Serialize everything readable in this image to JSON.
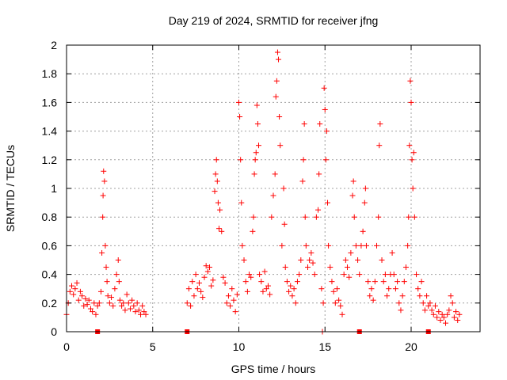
{
  "chart_data": {
    "type": "scatter",
    "title": "Day 219 of 2024, SRMTID for receiver jfng",
    "xlabel": "GPS time / hours",
    "ylabel": "SRMTID / TECUs",
    "xlim": [
      0,
      24
    ],
    "ylim": [
      0,
      2
    ],
    "x_ticks": [
      0,
      5,
      10,
      15,
      20
    ],
    "x_tick_labels": [
      "0",
      "5",
      "10",
      "15",
      "20"
    ],
    "y_ticks": [
      0,
      0.2,
      0.4,
      0.6,
      0.8,
      1,
      1.2,
      1.4,
      1.6,
      1.8,
      2
    ],
    "y_tick_labels": [
      "0",
      "0.2",
      "0.4",
      "0.6",
      "0.8",
      "1",
      "1.2",
      "1.4",
      "1.6",
      "1.8",
      "2"
    ],
    "grid": true,
    "marker": "+",
    "color": "#ff0000",
    "zero_markers_x": [
      1.8,
      7.0,
      17.0,
      21.0
    ],
    "series": [
      {
        "name": "SRMTID",
        "points": [
          [
            0.0,
            0.12
          ],
          [
            0.1,
            0.2
          ],
          [
            0.2,
            0.28
          ],
          [
            0.3,
            0.32
          ],
          [
            0.4,
            0.26
          ],
          [
            0.5,
            0.3
          ],
          [
            0.6,
            0.34
          ],
          [
            0.7,
            0.22
          ],
          [
            0.8,
            0.28
          ],
          [
            0.9,
            0.25
          ],
          [
            1.0,
            0.18
          ],
          [
            1.1,
            0.23
          ],
          [
            1.2,
            0.19
          ],
          [
            1.3,
            0.22
          ],
          [
            1.4,
            0.16
          ],
          [
            1.5,
            0.14
          ],
          [
            1.6,
            0.2
          ],
          [
            1.7,
            0.12
          ],
          [
            1.8,
            0.18
          ],
          [
            1.9,
            0.2
          ],
          [
            2.0,
            0.28
          ],
          [
            2.05,
            0.55
          ],
          [
            2.1,
            0.8
          ],
          [
            2.12,
            0.95
          ],
          [
            2.15,
            1.12
          ],
          [
            2.2,
            1.05
          ],
          [
            2.25,
            0.6
          ],
          [
            2.3,
            0.45
          ],
          [
            2.35,
            0.35
          ],
          [
            2.4,
            0.25
          ],
          [
            2.5,
            0.2
          ],
          [
            2.6,
            0.24
          ],
          [
            2.7,
            0.18
          ],
          [
            2.8,
            0.3
          ],
          [
            2.9,
            0.4
          ],
          [
            3.0,
            0.5
          ],
          [
            3.05,
            0.35
          ],
          [
            3.1,
            0.22
          ],
          [
            3.2,
            0.18
          ],
          [
            3.3,
            0.2
          ],
          [
            3.4,
            0.15
          ],
          [
            3.5,
            0.26
          ],
          [
            3.6,
            0.2
          ],
          [
            3.7,
            0.16
          ],
          [
            3.8,
            0.22
          ],
          [
            3.9,
            0.18
          ],
          [
            4.0,
            0.14
          ],
          [
            4.1,
            0.2
          ],
          [
            4.2,
            0.15
          ],
          [
            4.3,
            0.12
          ],
          [
            4.4,
            0.18
          ],
          [
            4.5,
            0.14
          ],
          [
            4.6,
            0.12
          ],
          [
            7.0,
            0.2
          ],
          [
            7.1,
            0.3
          ],
          [
            7.2,
            0.18
          ],
          [
            7.3,
            0.35
          ],
          [
            7.4,
            0.25
          ],
          [
            7.5,
            0.4
          ],
          [
            7.6,
            0.3
          ],
          [
            7.7,
            0.34
          ],
          [
            7.8,
            0.28
          ],
          [
            7.9,
            0.24
          ],
          [
            8.0,
            0.38
          ],
          [
            8.1,
            0.46
          ],
          [
            8.2,
            0.42
          ],
          [
            8.3,
            0.45
          ],
          [
            8.4,
            0.32
          ],
          [
            8.5,
            0.36
          ],
          [
            8.6,
            0.98
          ],
          [
            8.65,
            1.1
          ],
          [
            8.7,
            1.2
          ],
          [
            8.75,
            1.05
          ],
          [
            8.8,
            0.9
          ],
          [
            8.85,
            0.72
          ],
          [
            8.9,
            0.85
          ],
          [
            9.0,
            0.7
          ],
          [
            9.1,
            0.38
          ],
          [
            9.2,
            0.34
          ],
          [
            9.3,
            0.2
          ],
          [
            9.4,
            0.25
          ],
          [
            9.5,
            0.18
          ],
          [
            9.6,
            0.3
          ],
          [
            9.7,
            0.22
          ],
          [
            9.8,
            0.14
          ],
          [
            9.9,
            0.26
          ],
          [
            10.0,
            1.6
          ],
          [
            10.05,
            1.5
          ],
          [
            10.1,
            1.2
          ],
          [
            10.15,
            0.9
          ],
          [
            10.2,
            0.6
          ],
          [
            10.3,
            0.5
          ],
          [
            10.4,
            0.35
          ],
          [
            10.5,
            0.28
          ],
          [
            10.6,
            0.4
          ],
          [
            10.7,
            0.38
          ],
          [
            10.8,
            0.7
          ],
          [
            10.85,
            0.8
          ],
          [
            10.9,
            1.1
          ],
          [
            10.95,
            1.2
          ],
          [
            11.0,
            1.25
          ],
          [
            11.05,
            1.58
          ],
          [
            11.1,
            1.45
          ],
          [
            11.15,
            1.3
          ],
          [
            11.2,
            0.4
          ],
          [
            11.3,
            0.35
          ],
          [
            11.4,
            0.28
          ],
          [
            11.5,
            0.42
          ],
          [
            11.6,
            0.3
          ],
          [
            11.7,
            0.32
          ],
          [
            11.8,
            0.26
          ],
          [
            11.9,
            0.8
          ],
          [
            12.0,
            0.95
          ],
          [
            12.1,
            1.1
          ],
          [
            12.15,
            1.64
          ],
          [
            12.2,
            1.75
          ],
          [
            12.25,
            1.95
          ],
          [
            12.3,
            1.9
          ],
          [
            12.35,
            1.5
          ],
          [
            12.4,
            1.3
          ],
          [
            12.5,
            0.6
          ],
          [
            12.6,
            1.0
          ],
          [
            12.65,
            0.75
          ],
          [
            12.7,
            0.45
          ],
          [
            12.8,
            0.35
          ],
          [
            12.9,
            0.28
          ],
          [
            13.0,
            0.32
          ],
          [
            13.1,
            0.25
          ],
          [
            13.2,
            0.3
          ],
          [
            13.3,
            0.2
          ],
          [
            13.4,
            0.35
          ],
          [
            13.5,
            0.4
          ],
          [
            13.6,
            0.5
          ],
          [
            13.7,
            1.05
          ],
          [
            13.75,
            1.2
          ],
          [
            13.8,
            1.45
          ],
          [
            13.85,
            0.8
          ],
          [
            13.9,
            0.6
          ],
          [
            14.0,
            0.45
          ],
          [
            14.1,
            0.5
          ],
          [
            14.2,
            0.55
          ],
          [
            14.3,
            0.48
          ],
          [
            14.4,
            0.4
          ],
          [
            14.5,
            0.8
          ],
          [
            14.6,
            0.85
          ],
          [
            14.65,
            1.1
          ],
          [
            14.7,
            1.45
          ],
          [
            14.8,
            0.3
          ],
          [
            14.85,
            0.0
          ],
          [
            14.9,
            0.2
          ],
          [
            14.95,
            1.7
          ],
          [
            15.0,
            1.55
          ],
          [
            15.05,
            1.2
          ],
          [
            15.1,
            1.4
          ],
          [
            15.15,
            0.9
          ],
          [
            15.2,
            0.6
          ],
          [
            15.3,
            0.45
          ],
          [
            15.4,
            0.35
          ],
          [
            15.5,
            0.28
          ],
          [
            15.6,
            0.2
          ],
          [
            15.7,
            0.3
          ],
          [
            15.8,
            0.22
          ],
          [
            15.9,
            0.18
          ],
          [
            16.0,
            0.12
          ],
          [
            16.1,
            0.4
          ],
          [
            16.2,
            0.5
          ],
          [
            16.3,
            0.45
          ],
          [
            16.4,
            0.38
          ],
          [
            16.5,
            0.55
          ],
          [
            16.6,
            0.95
          ],
          [
            16.65,
            1.05
          ],
          [
            16.7,
            0.8
          ],
          [
            16.8,
            0.6
          ],
          [
            16.9,
            0.5
          ],
          [
            17.0,
            0.4
          ],
          [
            17.1,
            0.6
          ],
          [
            17.2,
            0.7
          ],
          [
            17.3,
            0.9
          ],
          [
            17.35,
            1.0
          ],
          [
            17.4,
            0.6
          ],
          [
            17.5,
            0.35
          ],
          [
            17.6,
            0.25
          ],
          [
            17.7,
            0.3
          ],
          [
            17.8,
            0.22
          ],
          [
            17.9,
            0.35
          ],
          [
            18.0,
            0.6
          ],
          [
            18.1,
            0.8
          ],
          [
            18.15,
            1.3
          ],
          [
            18.2,
            1.45
          ],
          [
            18.3,
            0.5
          ],
          [
            18.4,
            0.35
          ],
          [
            18.5,
            0.4
          ],
          [
            18.6,
            0.25
          ],
          [
            18.7,
            0.3
          ],
          [
            18.8,
            0.4
          ],
          [
            18.9,
            0.55
          ],
          [
            19.0,
            0.4
          ],
          [
            19.1,
            0.3
          ],
          [
            19.2,
            0.35
          ],
          [
            19.3,
            0.2
          ],
          [
            19.4,
            0.15
          ],
          [
            19.5,
            0.25
          ],
          [
            19.6,
            0.35
          ],
          [
            19.7,
            0.45
          ],
          [
            19.8,
            0.6
          ],
          [
            19.85,
            0.8
          ],
          [
            19.9,
            1.3
          ],
          [
            19.95,
            1.75
          ],
          [
            20.0,
            1.6
          ],
          [
            20.05,
            1.2
          ],
          [
            20.1,
            1.0
          ],
          [
            20.15,
            1.25
          ],
          [
            20.2,
            0.8
          ],
          [
            20.3,
            0.4
          ],
          [
            20.4,
            0.3
          ],
          [
            20.5,
            0.25
          ],
          [
            20.6,
            0.35
          ],
          [
            20.7,
            0.2
          ],
          [
            20.8,
            0.15
          ],
          [
            20.9,
            0.25
          ],
          [
            21.0,
            0.18
          ],
          [
            21.1,
            0.2
          ],
          [
            21.2,
            0.15
          ],
          [
            21.3,
            0.12
          ],
          [
            21.4,
            0.18
          ],
          [
            21.5,
            0.1
          ],
          [
            21.6,
            0.14
          ],
          [
            21.7,
            0.08
          ],
          [
            21.8,
            0.12
          ],
          [
            21.9,
            0.1
          ],
          [
            22.0,
            0.06
          ],
          [
            22.1,
            0.12
          ],
          [
            22.2,
            0.15
          ],
          [
            22.3,
            0.25
          ],
          [
            22.4,
            0.2
          ],
          [
            22.5,
            0.1
          ],
          [
            22.6,
            0.14
          ],
          [
            22.7,
            0.08
          ],
          [
            22.8,
            0.12
          ]
        ]
      }
    ]
  }
}
